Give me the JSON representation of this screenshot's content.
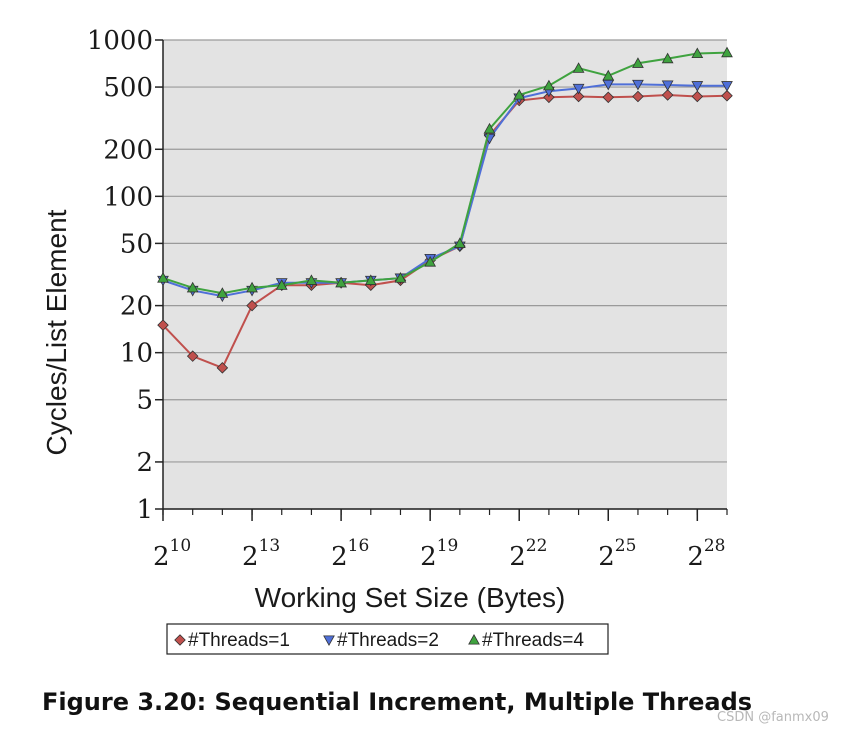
{
  "caption": "Figure 3.20: Sequential Increment, Multiple Threads",
  "watermark": "CSDN @fanmx09",
  "colors": {
    "plot_background": "#e3e3e3",
    "grid": "#9a9a9a",
    "threads1": "#c0504d",
    "threads2": "#4f6fd8",
    "threads4": "#3fa33f"
  },
  "chart_data": {
    "type": "line",
    "title": "",
    "xlabel": "Working Set Size (Bytes)",
    "ylabel": "Cycles/List Element",
    "x_scale": "log2",
    "y_scale": "log",
    "xlim_exp": [
      10,
      29
    ],
    "ylim": [
      1,
      1000
    ],
    "grid": true,
    "legend_position": "bottom",
    "yticks": [
      {
        "value": 1,
        "label": "1"
      },
      {
        "value": 2,
        "label": "2"
      },
      {
        "value": 5,
        "label": "5"
      },
      {
        "value": 10,
        "label": "10"
      },
      {
        "value": 20,
        "label": "20"
      },
      {
        "value": 50,
        "label": "50"
      },
      {
        "value": 100,
        "label": "100"
      },
      {
        "value": 200,
        "label": "200"
      },
      {
        "value": 500,
        "label": "500"
      },
      {
        "value": 1000,
        "label": "1000"
      }
    ],
    "xticks": [
      {
        "exp": 10,
        "base": "2",
        "sup": "10"
      },
      {
        "exp": 13,
        "base": "2",
        "sup": "13"
      },
      {
        "exp": 16,
        "base": "2",
        "sup": "16"
      },
      {
        "exp": 19,
        "base": "2",
        "sup": "19"
      },
      {
        "exp": 22,
        "base": "2",
        "sup": "22"
      },
      {
        "exp": 25,
        "base": "2",
        "sup": "25"
      },
      {
        "exp": 28,
        "base": "2",
        "sup": "28"
      }
    ],
    "x_exponents": [
      10,
      11,
      12,
      13,
      14,
      15,
      16,
      17,
      18,
      19,
      20,
      21,
      22,
      23,
      24,
      25,
      26,
      27,
      28,
      29
    ],
    "series": [
      {
        "name": "#Threads=1",
        "marker": "diamond",
        "color": "#c0504d",
        "values": [
          15,
          9.5,
          8,
          20,
          27,
          27,
          28,
          27,
          29,
          39,
          48,
          245,
          410,
          430,
          435,
          430,
          435,
          445,
          435,
          440
        ]
      },
      {
        "name": "#Threads=2",
        "marker": "triangle-down",
        "color": "#4f6fd8",
        "values": [
          29,
          25,
          23,
          25,
          28,
          28,
          28,
          29,
          30,
          40,
          48,
          235,
          425,
          470,
          490,
          520,
          520,
          515,
          510,
          510
        ]
      },
      {
        "name": "#Threads=4",
        "marker": "triangle-up",
        "color": "#3fa33f",
        "values": [
          30,
          26,
          24,
          26,
          27,
          29,
          28,
          29,
          30,
          38,
          50,
          270,
          445,
          510,
          660,
          590,
          710,
          760,
          820,
          830
        ]
      }
    ]
  }
}
